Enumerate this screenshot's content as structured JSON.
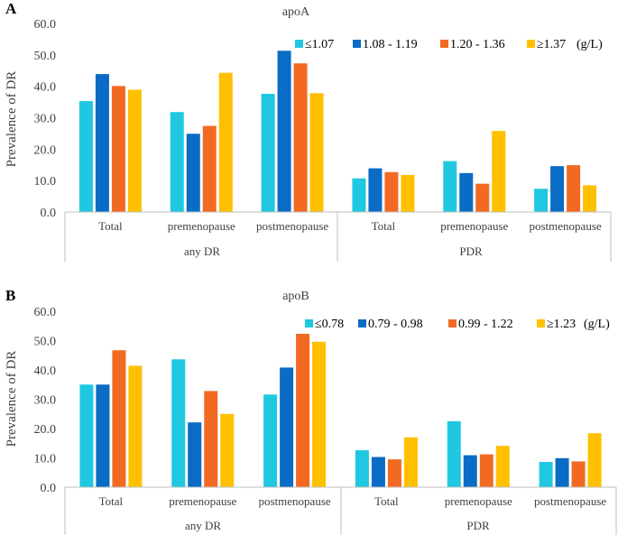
{
  "figure": {
    "colors": [
      "#1FC8E0",
      "#0A6CC4",
      "#F26A22",
      "#FFC000"
    ],
    "axis_color": "#bfbfbf",
    "tick_text_color": "#404040"
  },
  "chart_data": [
    {
      "type": "bar",
      "panel_label": "A",
      "title": "apoA",
      "ylabel": "Prevalence of DR",
      "ylim": [
        0,
        60
      ],
      "yticks": [
        "0.0",
        "10.0",
        "20.0",
        "30.0",
        "40.0",
        "50.0",
        "60.0"
      ],
      "grid": false,
      "legend": {
        "position": "top-right",
        "unit": "(g/L)"
      },
      "categories": [
        "Total",
        "premenopause",
        "postmenopause",
        "Total",
        "premenopause",
        "postmenopause"
      ],
      "groups": [
        "any DR",
        "PDR"
      ],
      "series": [
        {
          "name": "≤1.07",
          "values": [
            35.3,
            31.8,
            37.6,
            10.7,
            16.2,
            7.4
          ]
        },
        {
          "name": "1.08 - 1.19",
          "values": [
            43.9,
            24.9,
            51.3,
            13.9,
            12.4,
            14.6
          ]
        },
        {
          "name": "1.20 - 1.36",
          "values": [
            40.1,
            27.4,
            47.3,
            12.7,
            9.0,
            14.9
          ]
        },
        {
          "name": "≥1.37",
          "values": [
            38.9,
            44.3,
            37.8,
            11.8,
            25.8,
            8.5
          ]
        }
      ]
    },
    {
      "type": "bar",
      "panel_label": "B",
      "title": "apoB",
      "ylabel": "Prevalence of DR",
      "ylim": [
        0,
        60
      ],
      "yticks": [
        "0.0",
        "10.0",
        "20.0",
        "30.0",
        "40.0",
        "50.0",
        "60.0"
      ],
      "grid": false,
      "legend": {
        "position": "top-right",
        "unit": "(g/L)"
      },
      "categories": [
        "Total",
        "premenopause",
        "postmenopause",
        "Total",
        "premenopause",
        "postmenopause"
      ],
      "groups": [
        "any DR",
        "PDR"
      ],
      "series": [
        {
          "name": "≤0.78",
          "values": [
            35.0,
            43.6,
            31.6,
            12.6,
            22.5,
            8.6
          ]
        },
        {
          "name": "0.79 - 0.98",
          "values": [
            35.0,
            22.1,
            40.8,
            10.3,
            10.9,
            9.9
          ]
        },
        {
          "name": "0.99 - 1.22",
          "values": [
            46.7,
            32.8,
            52.3,
            9.5,
            11.2,
            8.8
          ]
        },
        {
          "name": "≥1.23",
          "values": [
            41.4,
            25.0,
            49.6,
            17.0,
            14.1,
            18.4
          ]
        }
      ]
    }
  ]
}
